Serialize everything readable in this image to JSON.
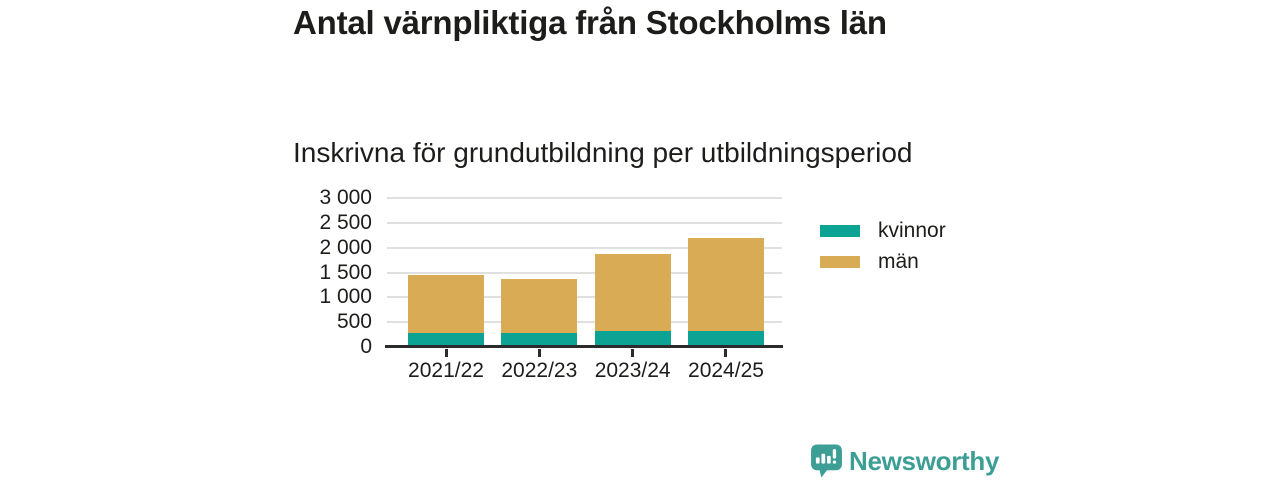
{
  "header": {
    "title": "Antal värnpliktiga från Stockholms län",
    "subtitle": "Inskrivna för grundutbildning per utbildningsperiod"
  },
  "colors": {
    "ink": "#1d1d1b",
    "axis": "#2b2b2b",
    "grid": "#e0e0e0",
    "kvinnor": "#0ca394",
    "man": "#d9ab55",
    "brand": "#3d9e96"
  },
  "chart_data": {
    "type": "bar",
    "stacked": true,
    "title": "Antal värnpliktiga från Stockholms län",
    "subtitle": "Inskrivna för grundutbildning per utbildningsperiod",
    "categories": [
      "2021/22",
      "2022/23",
      "2023/24",
      "2024/25"
    ],
    "series": [
      {
        "name": "kvinnor",
        "color": "#0ca394",
        "values": [
          290,
          280,
          330,
          330
        ]
      },
      {
        "name": "män",
        "color": "#d9ab55",
        "values": [
          1170,
          1080,
          1540,
          1870
        ]
      }
    ],
    "stacked_totals": [
      1460,
      1360,
      1870,
      2200
    ],
    "xlabel": "",
    "ylabel": "",
    "ylim": [
      0,
      3000
    ],
    "y_ticks": [
      0,
      500,
      1000,
      1500,
      2000,
      2500,
      3000
    ],
    "y_tick_labels": [
      "0",
      "500",
      "1 000",
      "1 500",
      "2 000",
      "2 500",
      "3 000"
    ],
    "grid": "horizontal",
    "legend_position": "right"
  },
  "legend": {
    "items": [
      {
        "label": "kvinnor",
        "color": "#0ca394"
      },
      {
        "label": "män",
        "color": "#d9ab55"
      }
    ]
  },
  "footer": {
    "brand_name": "Newsworthy"
  }
}
